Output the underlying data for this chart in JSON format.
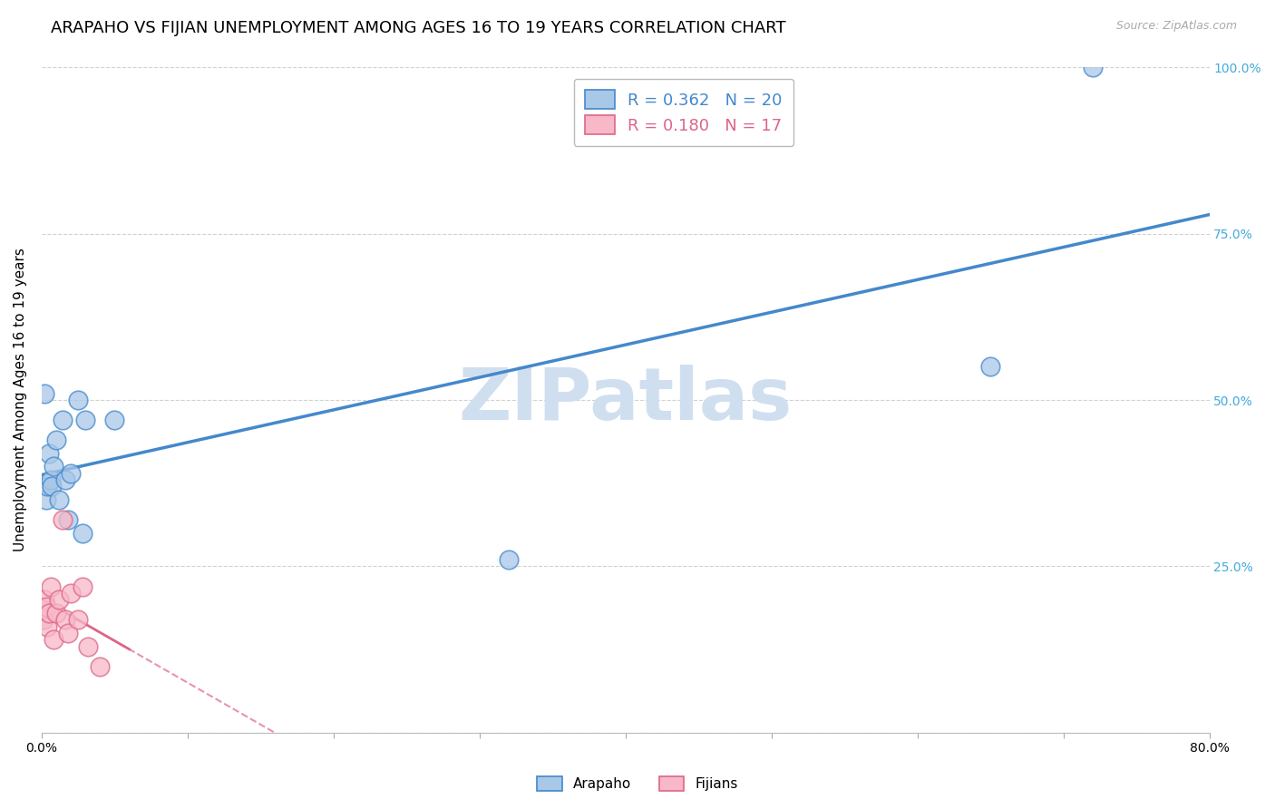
{
  "title": "ARAPAHO VS FIJIAN UNEMPLOYMENT AMONG AGES 16 TO 19 YEARS CORRELATION CHART",
  "source": "Source: ZipAtlas.com",
  "ylabel": "Unemployment Among Ages 16 to 19 years",
  "xlim": [
    0.0,
    0.8
  ],
  "ylim": [
    0.0,
    1.0
  ],
  "xticks": [
    0.0,
    0.1,
    0.2,
    0.3,
    0.4,
    0.5,
    0.6,
    0.7,
    0.8
  ],
  "ytick_positions": [
    0.0,
    0.25,
    0.5,
    0.75,
    1.0
  ],
  "yticklabels_right": [
    "",
    "25.0%",
    "50.0%",
    "75.0%",
    "100.0%"
  ],
  "arapaho_x": [
    0.002,
    0.003,
    0.004,
    0.005,
    0.006,
    0.007,
    0.008,
    0.01,
    0.012,
    0.014,
    0.016,
    0.018,
    0.02,
    0.025,
    0.028,
    0.03,
    0.05,
    0.32,
    0.65,
    0.72
  ],
  "arapaho_y": [
    0.51,
    0.35,
    0.37,
    0.42,
    0.38,
    0.37,
    0.4,
    0.44,
    0.35,
    0.47,
    0.38,
    0.32,
    0.39,
    0.5,
    0.3,
    0.47,
    0.47,
    0.26,
    0.55,
    1.0
  ],
  "fijian_x": [
    0.001,
    0.002,
    0.003,
    0.004,
    0.005,
    0.006,
    0.008,
    0.01,
    0.012,
    0.014,
    0.016,
    0.018,
    0.02,
    0.025,
    0.028,
    0.032,
    0.04
  ],
  "fijian_y": [
    0.17,
    0.2,
    0.19,
    0.16,
    0.18,
    0.22,
    0.14,
    0.18,
    0.2,
    0.32,
    0.17,
    0.15,
    0.21,
    0.17,
    0.22,
    0.13,
    0.1
  ],
  "arapaho_R": 0.362,
  "arapaho_N": 20,
  "fijian_R": 0.18,
  "fijian_N": 17,
  "arapaho_color": "#a8c8e8",
  "fijian_color": "#f8b8c8",
  "arapaho_edge_color": "#4488cc",
  "fijian_edge_color": "#dd6688",
  "arapaho_line_color": "#4488cc",
  "fijian_line_color": "#dd6688",
  "background_color": "#ffffff",
  "grid_color": "#cccccc",
  "watermark_color": "#d0dff0",
  "title_fontsize": 13,
  "axis_label_fontsize": 11
}
